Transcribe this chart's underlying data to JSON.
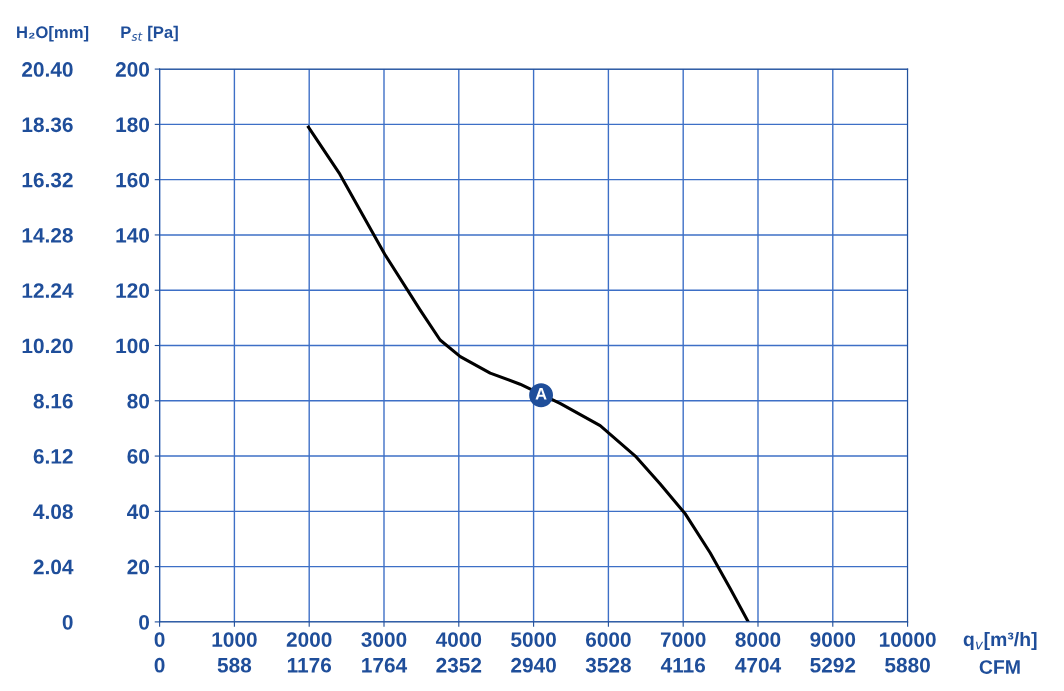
{
  "chart_data": {
    "type": "line",
    "xlabel": "q$_{v}$[m³/h]",
    "ylabel": "P$_{st}$ [Pa]",
    "y2label": "H₂O[mm]",
    "x2label": "CFM",
    "xlim": [
      0,
      10000
    ],
    "xticks": [
      0,
      1000,
      2000,
      3000,
      4000,
      5000,
      6000,
      7000,
      8000,
      9000,
      10000
    ],
    "ylim": [
      0,
      200
    ],
    "yticks": [
      0,
      20,
      40,
      60,
      80,
      100,
      120,
      140,
      160,
      180,
      200
    ],
    "y2lim": [
      0,
      20.4
    ],
    "y2ticks": [
      0,
      {
        "value": 2.04,
        "label": "2.04"
      },
      {
        "value": 4.08,
        "label": "4.08"
      },
      {
        "value": 6.12,
        "label": "6.12"
      },
      {
        "value": 8.16,
        "label": "8.16"
      },
      {
        "value": 10.2,
        "label": "10.20"
      },
      {
        "value": 12.24,
        "label": "12.24"
      },
      {
        "value": 14.28,
        "label": "14.28"
      },
      {
        "value": 16.32,
        "label": "16.32"
      },
      {
        "value": 18.36,
        "label": "18.36"
      },
      {
        "value": 20.4,
        "label": "20.40"
      }
    ],
    "x2lim": [
      0,
      5880
    ],
    "x2ticks": [
      0,
      588,
      1176,
      1764,
      2352,
      2940,
      3528,
      4116,
      4704,
      5292,
      5880
    ],
    "grid": true,
    "legend": false,
    "marker": "none",
    "line_style": "solid",
    "series": [
      {
        "color": "#000000",
        "x": [
          1990,
          2410,
          3010,
          3480,
          3750,
          4020,
          4420,
          4820,
          5360,
          5890,
          6360,
          6690,
          7030,
          7360,
          7630,
          7870
        ],
        "values": [
          179,
          162,
          133,
          113,
          102,
          96,
          90,
          86,
          79,
          71,
          60,
          50,
          39,
          25,
          12,
          0
        ]
      }
    ],
    "annotations": [
      {
        "text": "A",
        "x": 5100,
        "y": 82
      }
    ]
  }
}
